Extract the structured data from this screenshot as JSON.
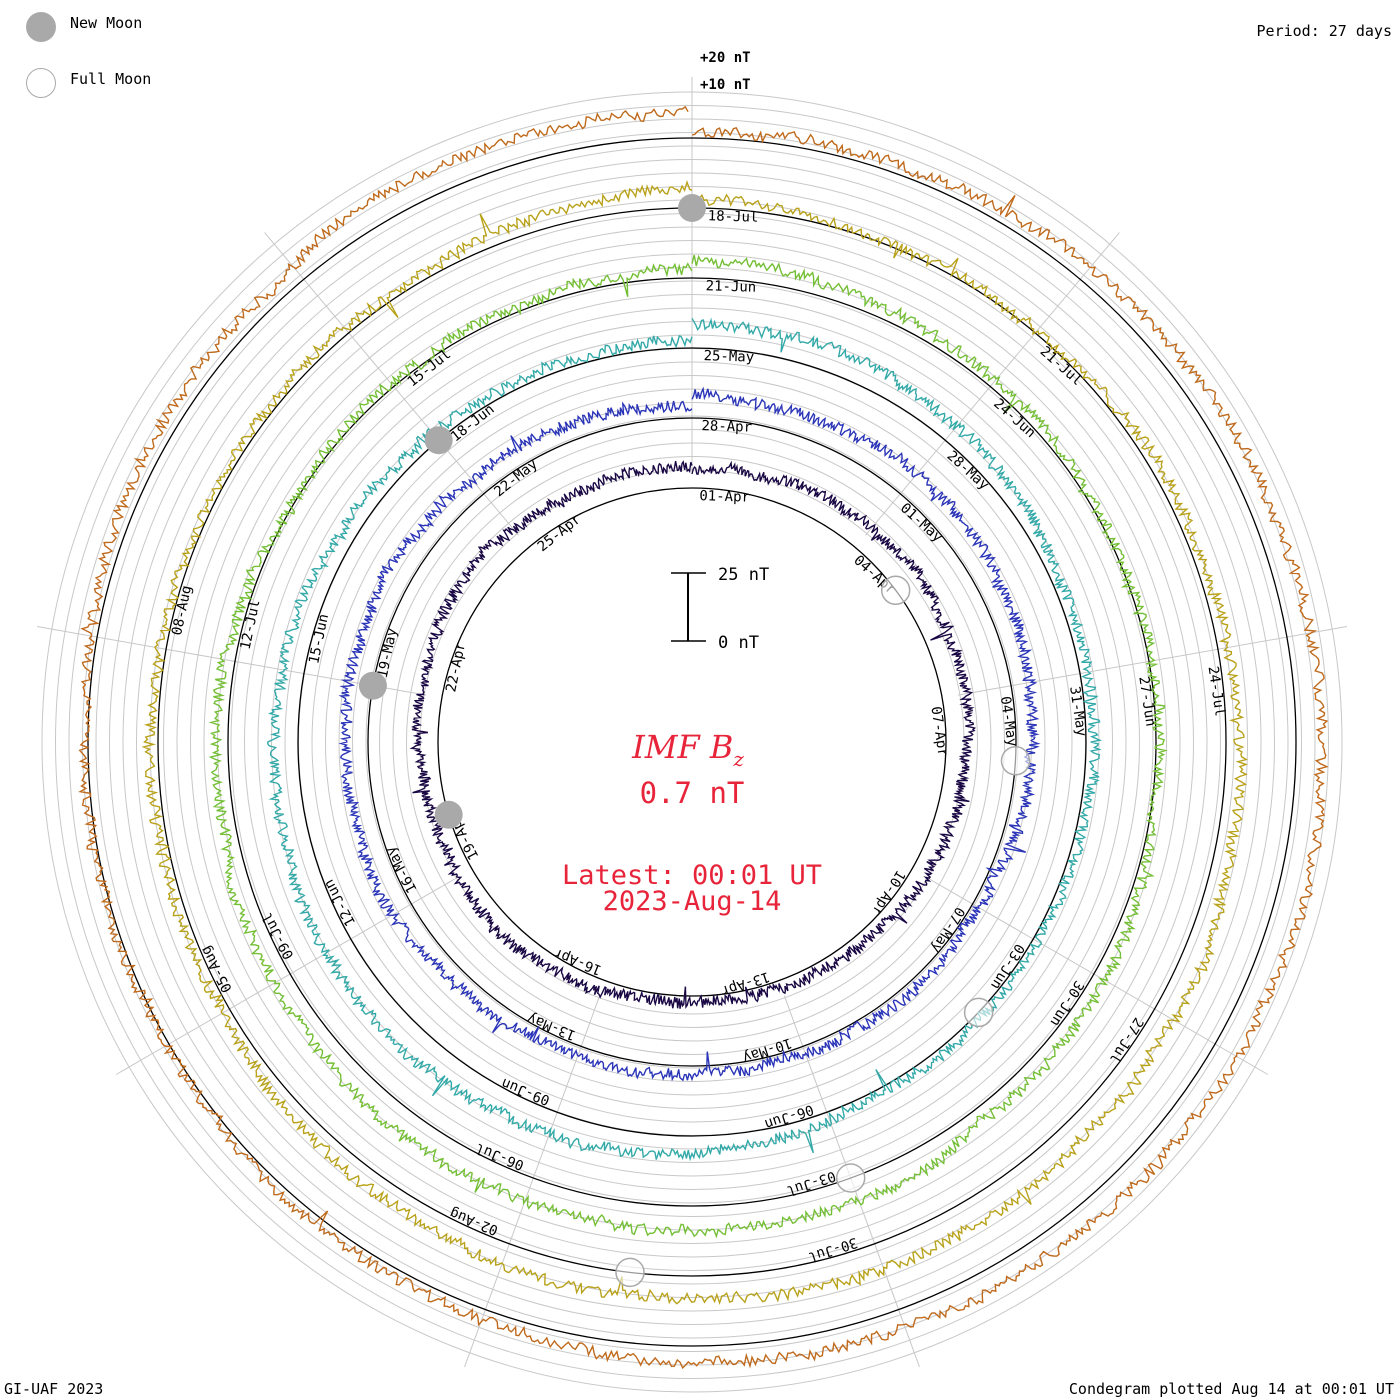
{
  "legend": {
    "new_moon_label": "New Moon",
    "full_moon_label": "Full Moon"
  },
  "period_text": "Period: 27 days",
  "footer_left": "GI-UAF 2023",
  "footer_right": "Condegram plotted Aug 14 at 00:01 UT",
  "center": {
    "title_prefix": "IMF B",
    "title_sub": "z",
    "value": "0.7 nT",
    "latest": "Latest: 00:01 UT",
    "date": "2023-Aug-14"
  },
  "scale": {
    "top_label": "25 nT",
    "bottom_label": "0 nT",
    "span_nT": 25
  },
  "offset_labels": [
    "+20 nT",
    "+10 nT"
  ],
  "colors": {
    "ring1": "#1a0844",
    "ring2": "#2b35b8",
    "ring3": "#33a9a8",
    "ring4": "#74bf35",
    "ring5": "#b9a21b",
    "ring6": "#bf6a1c",
    "outer": "#b81412",
    "label_red": "#e8243a",
    "moon": "#a9a9a9"
  },
  "chart_data": {
    "type": "condegram",
    "title": "IMF Bz",
    "period_days": 27,
    "units": "nT",
    "series": [
      {
        "name": "ring1",
        "start": "Apr",
        "color": "#1a0844",
        "date_labels": [
          "01-Apr",
          "04-Apr",
          "07-Apr",
          "10-Apr",
          "13-Apr",
          "16-Apr",
          "19-Apr",
          "22-Apr",
          "25-Apr"
        ]
      },
      {
        "name": "ring2",
        "start": "Apr",
        "color": "#2b35b8",
        "date_labels": [
          "28-Apr",
          "01-May",
          "04-May",
          "07-May",
          "10-May",
          "13-May",
          "16-May",
          "19-May",
          "22-May"
        ]
      },
      {
        "name": "ring3",
        "start": "May",
        "color": "#33a9a8",
        "date_labels": [
          "25-May",
          "28-May",
          "31-May",
          "03-Jun",
          "06-Jun",
          "09-Jun",
          "12-Jun",
          "15-Jun",
          "18-Jun"
        ]
      },
      {
        "name": "ring4",
        "start": "Jun",
        "color": "#74bf35",
        "date_labels": [
          "21-Jun",
          "24-Jun",
          "27-Jun",
          "30-Jun",
          "03-Jul",
          "06-Jul",
          "09-Jul",
          "12-Jul",
          "15-Jul"
        ]
      },
      {
        "name": "ring5",
        "start": "Jul",
        "color": "#b9a21b",
        "date_labels": [
          "18-Jul",
          "21-Jul",
          "24-Jul",
          "27-Jul",
          "30-Jul",
          "02-Aug",
          "05-Aug",
          "08-Aug"
        ]
      },
      {
        "name": "ring6",
        "start": "Aug",
        "color": "#bf6a1c",
        "date_labels": []
      }
    ],
    "moons": [
      {
        "type": "new",
        "date": "18-Jul"
      },
      {
        "type": "new",
        "date": "18-Jun"
      },
      {
        "type": "new",
        "date": "19-May"
      },
      {
        "type": "new",
        "date": "20-Apr"
      },
      {
        "type": "full",
        "date": "05-Apr"
      },
      {
        "type": "full",
        "date": "05-May"
      },
      {
        "type": "full",
        "date": "04-Jun"
      },
      {
        "type": "full",
        "date": "03-Jul"
      },
      {
        "type": "full",
        "date": "01-Aug"
      }
    ]
  }
}
